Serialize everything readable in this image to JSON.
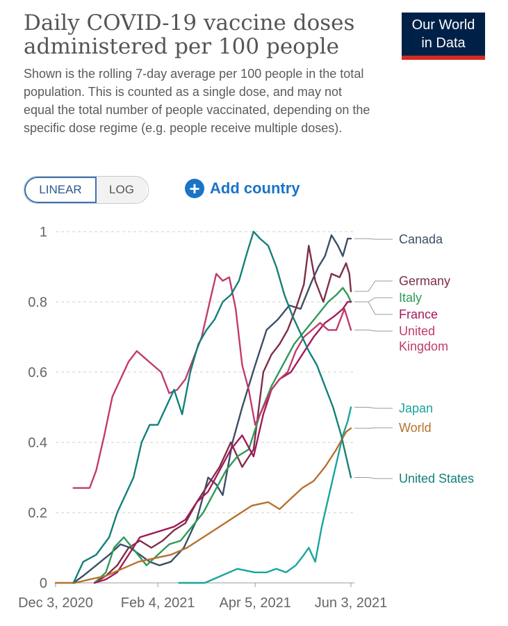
{
  "header": {
    "title": "Daily COVID-19 vaccine doses administered per 100 people",
    "subtitle": "Shown is the rolling 7-day average per 100 people in the total population. This is counted as a single dose, and may not equal the total number of people vaccinated, depending on the specific dose regime (e.g. people receive multiple doses).",
    "logo_line1": "Our World",
    "logo_line2": "in Data"
  },
  "controls": {
    "linear_label": "LINEAR",
    "log_label": "LOG",
    "add_country_label": "Add country",
    "selected_scale": "linear"
  },
  "chart_data": {
    "type": "line",
    "title": "Daily COVID-19 vaccine doses administered per 100 people",
    "xlabel": "",
    "ylabel": "",
    "x_range": [
      "2020-12-03",
      "2021-06-03"
    ],
    "ylim": [
      0,
      1
    ],
    "yticks": [
      0,
      0.2,
      0.4,
      0.6,
      0.8,
      1
    ],
    "ytick_labels": [
      "0",
      "0.2",
      "0.4",
      "0.6",
      "0.8",
      "1"
    ],
    "xticks": [
      "2020-12-03",
      "2021-02-04",
      "2021-04-05",
      "2021-06-03"
    ],
    "xtick_labels": [
      "Dec 3, 2020",
      "Feb 4, 2021",
      "Apr 5, 2021",
      "Jun 3, 2021"
    ],
    "grid": "horizontal dashed",
    "legend": "right, labels at line ends",
    "series": [
      {
        "name": "Canada",
        "color": "#3c4e66",
        "points": [
          [
            "2020-12-14",
            0
          ],
          [
            "2020-12-20",
            0.02
          ],
          [
            "2020-12-28",
            0.05
          ],
          [
            "2021-01-05",
            0.08
          ],
          [
            "2021-01-12",
            0.11
          ],
          [
            "2021-01-18",
            0.1
          ],
          [
            "2021-01-24",
            0.08
          ],
          [
            "2021-01-30",
            0.06
          ],
          [
            "2021-02-05",
            0.05
          ],
          [
            "2021-02-12",
            0.06
          ],
          [
            "2021-02-20",
            0.1
          ],
          [
            "2021-02-28",
            0.18
          ],
          [
            "2021-03-07",
            0.3
          ],
          [
            "2021-03-12",
            0.28
          ],
          [
            "2021-03-16",
            0.25
          ],
          [
            "2021-03-22",
            0.4
          ],
          [
            "2021-03-28",
            0.5
          ],
          [
            "2021-04-05",
            0.62
          ],
          [
            "2021-04-12",
            0.72
          ],
          [
            "2021-04-19",
            0.75
          ],
          [
            "2021-04-26",
            0.79
          ],
          [
            "2021-05-03",
            0.78
          ],
          [
            "2021-05-10",
            0.86
          ],
          [
            "2021-05-14",
            0.9
          ],
          [
            "2021-05-18",
            0.93
          ],
          [
            "2021-05-22",
            0.99
          ],
          [
            "2021-05-26",
            0.96
          ],
          [
            "2021-05-29",
            0.93
          ],
          [
            "2021-06-01",
            0.98
          ],
          [
            "2021-06-03",
            0.98
          ]
        ]
      },
      {
        "name": "Germany",
        "color": "#7d2f47",
        "points": [
          [
            "2020-12-27",
            0
          ],
          [
            "2021-01-03",
            0.02
          ],
          [
            "2021-01-10",
            0.05
          ],
          [
            "2021-01-17",
            0.1
          ],
          [
            "2021-01-24",
            0.12
          ],
          [
            "2021-01-31",
            0.1
          ],
          [
            "2021-02-07",
            0.12
          ],
          [
            "2021-02-14",
            0.15
          ],
          [
            "2021-02-21",
            0.17
          ],
          [
            "2021-02-28",
            0.23
          ],
          [
            "2021-03-07",
            0.28
          ],
          [
            "2021-03-14",
            0.33
          ],
          [
            "2021-03-21",
            0.4
          ],
          [
            "2021-03-28",
            0.33
          ],
          [
            "2021-04-04",
            0.38
          ],
          [
            "2021-04-10",
            0.6
          ],
          [
            "2021-04-15",
            0.65
          ],
          [
            "2021-04-20",
            0.68
          ],
          [
            "2021-04-25",
            0.72
          ],
          [
            "2021-04-30",
            0.78
          ],
          [
            "2021-05-05",
            0.85
          ],
          [
            "2021-05-08",
            0.96
          ],
          [
            "2021-05-12",
            0.86
          ],
          [
            "2021-05-17",
            0.8
          ],
          [
            "2021-05-22",
            0.88
          ],
          [
            "2021-05-27",
            0.87
          ],
          [
            "2021-05-31",
            0.91
          ],
          [
            "2021-06-02",
            0.88
          ],
          [
            "2021-06-03",
            0.83
          ]
        ]
      },
      {
        "name": "Italy",
        "color": "#2e9a57",
        "points": [
          [
            "2020-12-27",
            0
          ],
          [
            "2021-01-03",
            0.03
          ],
          [
            "2021-01-08",
            0.1
          ],
          [
            "2021-01-14",
            0.13
          ],
          [
            "2021-01-21",
            0.09
          ],
          [
            "2021-01-28",
            0.05
          ],
          [
            "2021-02-04",
            0.08
          ],
          [
            "2021-02-11",
            0.11
          ],
          [
            "2021-02-18",
            0.12
          ],
          [
            "2021-02-25",
            0.16
          ],
          [
            "2021-03-04",
            0.2
          ],
          [
            "2021-03-11",
            0.26
          ],
          [
            "2021-03-18",
            0.32
          ],
          [
            "2021-03-25",
            0.36
          ],
          [
            "2021-04-01",
            0.38
          ],
          [
            "2021-04-08",
            0.48
          ],
          [
            "2021-04-15",
            0.56
          ],
          [
            "2021-04-22",
            0.62
          ],
          [
            "2021-04-29",
            0.68
          ],
          [
            "2021-05-06",
            0.72
          ],
          [
            "2021-05-13",
            0.76
          ],
          [
            "2021-05-20",
            0.8
          ],
          [
            "2021-05-25",
            0.82
          ],
          [
            "2021-05-29",
            0.84
          ],
          [
            "2021-06-01",
            0.82
          ],
          [
            "2021-06-03",
            0.8
          ]
        ]
      },
      {
        "name": "France",
        "color": "#a3195b",
        "points": [
          [
            "2020-12-27",
            0
          ],
          [
            "2021-01-03",
            0.01
          ],
          [
            "2021-01-10",
            0.03
          ],
          [
            "2021-01-17",
            0.08
          ],
          [
            "2021-01-24",
            0.13
          ],
          [
            "2021-01-31",
            0.14
          ],
          [
            "2021-02-07",
            0.15
          ],
          [
            "2021-02-14",
            0.16
          ],
          [
            "2021-02-21",
            0.18
          ],
          [
            "2021-02-28",
            0.23
          ],
          [
            "2021-03-07",
            0.26
          ],
          [
            "2021-03-14",
            0.32
          ],
          [
            "2021-03-21",
            0.38
          ],
          [
            "2021-03-28",
            0.42
          ],
          [
            "2021-04-04",
            0.36
          ],
          [
            "2021-04-10",
            0.48
          ],
          [
            "2021-04-15",
            0.55
          ],
          [
            "2021-04-20",
            0.58
          ],
          [
            "2021-04-27",
            0.6
          ],
          [
            "2021-05-04",
            0.65
          ],
          [
            "2021-05-11",
            0.7
          ],
          [
            "2021-05-18",
            0.74
          ],
          [
            "2021-05-24",
            0.76
          ],
          [
            "2021-05-29",
            0.78
          ],
          [
            "2021-06-01",
            0.8
          ],
          [
            "2021-06-03",
            0.8
          ]
        ]
      },
      {
        "name": "United Kingdom",
        "color": "#c13b6a",
        "points": [
          [
            "2020-12-14",
            0.27
          ],
          [
            "2020-12-20",
            0.27
          ],
          [
            "2020-12-24",
            0.27
          ],
          [
            "2020-12-28",
            0.32
          ],
          [
            "2021-01-02",
            0.42
          ],
          [
            "2021-01-07",
            0.53
          ],
          [
            "2021-01-12",
            0.58
          ],
          [
            "2021-01-17",
            0.63
          ],
          [
            "2021-01-22",
            0.66
          ],
          [
            "2021-01-27",
            0.64
          ],
          [
            "2021-02-01",
            0.62
          ],
          [
            "2021-02-06",
            0.6
          ],
          [
            "2021-02-11",
            0.54
          ],
          [
            "2021-02-16",
            0.55
          ],
          [
            "2021-02-21",
            0.58
          ],
          [
            "2021-02-26",
            0.64
          ],
          [
            "2021-03-03",
            0.7
          ],
          [
            "2021-03-08",
            0.8
          ],
          [
            "2021-03-12",
            0.88
          ],
          [
            "2021-03-16",
            0.86
          ],
          [
            "2021-03-20",
            0.87
          ],
          [
            "2021-03-24",
            0.78
          ],
          [
            "2021-03-28",
            0.62
          ],
          [
            "2021-04-01",
            0.55
          ],
          [
            "2021-04-05",
            0.45
          ],
          [
            "2021-04-10",
            0.5
          ],
          [
            "2021-04-15",
            0.55
          ],
          [
            "2021-04-20",
            0.58
          ],
          [
            "2021-04-25",
            0.6
          ],
          [
            "2021-04-30",
            0.66
          ],
          [
            "2021-05-05",
            0.7
          ],
          [
            "2021-05-10",
            0.72
          ],
          [
            "2021-05-15",
            0.74
          ],
          [
            "2021-05-20",
            0.72
          ],
          [
            "2021-05-25",
            0.72
          ],
          [
            "2021-05-30",
            0.78
          ],
          [
            "2021-06-03",
            0.72
          ]
        ]
      },
      {
        "name": "Japan",
        "color": "#18a59c",
        "points": [
          [
            "2021-02-17",
            0
          ],
          [
            "2021-02-25",
            0
          ],
          [
            "2021-03-05",
            0
          ],
          [
            "2021-03-15",
            0.02
          ],
          [
            "2021-03-25",
            0.04
          ],
          [
            "2021-04-05",
            0.03
          ],
          [
            "2021-04-12",
            0.03
          ],
          [
            "2021-04-18",
            0.04
          ],
          [
            "2021-04-24",
            0.03
          ],
          [
            "2021-04-30",
            0.05
          ],
          [
            "2021-05-05",
            0.08
          ],
          [
            "2021-05-08",
            0.1
          ],
          [
            "2021-05-12",
            0.06
          ],
          [
            "2021-05-16",
            0.16
          ],
          [
            "2021-05-20",
            0.24
          ],
          [
            "2021-05-25",
            0.34
          ],
          [
            "2021-05-29",
            0.42
          ],
          [
            "2021-06-01",
            0.46
          ],
          [
            "2021-06-03",
            0.5
          ]
        ]
      },
      {
        "name": "World",
        "color": "#b5712d",
        "points": [
          [
            "2020-12-03",
            0
          ],
          [
            "2020-12-15",
            0
          ],
          [
            "2020-12-24",
            0.01
          ],
          [
            "2021-01-03",
            0.02
          ],
          [
            "2021-01-13",
            0.04
          ],
          [
            "2021-01-23",
            0.06
          ],
          [
            "2021-02-02",
            0.07
          ],
          [
            "2021-02-12",
            0.08
          ],
          [
            "2021-02-22",
            0.1
          ],
          [
            "2021-03-04",
            0.13
          ],
          [
            "2021-03-14",
            0.16
          ],
          [
            "2021-03-24",
            0.19
          ],
          [
            "2021-04-03",
            0.22
          ],
          [
            "2021-04-13",
            0.23
          ],
          [
            "2021-04-20",
            0.21
          ],
          [
            "2021-04-27",
            0.24
          ],
          [
            "2021-05-04",
            0.27
          ],
          [
            "2021-05-11",
            0.29
          ],
          [
            "2021-05-18",
            0.33
          ],
          [
            "2021-05-25",
            0.38
          ],
          [
            "2021-05-31",
            0.43
          ],
          [
            "2021-06-03",
            0.44
          ]
        ]
      },
      {
        "name": "United States",
        "color": "#138079",
        "points": [
          [
            "2020-12-14",
            0
          ],
          [
            "2020-12-20",
            0.06
          ],
          [
            "2020-12-28",
            0.08
          ],
          [
            "2021-01-05",
            0.13
          ],
          [
            "2021-01-10",
            0.2
          ],
          [
            "2021-01-15",
            0.25
          ],
          [
            "2021-01-20",
            0.3
          ],
          [
            "2021-01-25",
            0.4
          ],
          [
            "2021-01-30",
            0.45
          ],
          [
            "2021-02-04",
            0.45
          ],
          [
            "2021-02-09",
            0.5
          ],
          [
            "2021-02-14",
            0.55
          ],
          [
            "2021-02-19",
            0.48
          ],
          [
            "2021-02-24",
            0.6
          ],
          [
            "2021-03-01",
            0.68
          ],
          [
            "2021-03-06",
            0.72
          ],
          [
            "2021-03-11",
            0.75
          ],
          [
            "2021-03-16",
            0.8
          ],
          [
            "2021-03-21",
            0.82
          ],
          [
            "2021-03-26",
            0.86
          ],
          [
            "2021-03-31",
            0.94
          ],
          [
            "2021-04-04",
            1.0
          ],
          [
            "2021-04-08",
            0.98
          ],
          [
            "2021-04-13",
            0.96
          ],
          [
            "2021-04-18",
            0.9
          ],
          [
            "2021-04-23",
            0.82
          ],
          [
            "2021-04-28",
            0.76
          ],
          [
            "2021-05-03",
            0.71
          ],
          [
            "2021-05-08",
            0.66
          ],
          [
            "2021-05-13",
            0.62
          ],
          [
            "2021-05-18",
            0.56
          ],
          [
            "2021-05-23",
            0.5
          ],
          [
            "2021-05-28",
            0.42
          ],
          [
            "2021-06-03",
            0.3
          ]
        ]
      }
    ]
  }
}
